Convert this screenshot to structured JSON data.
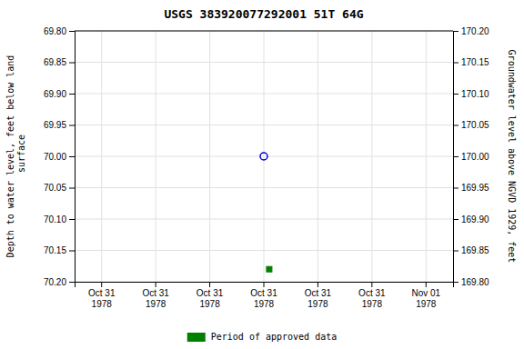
{
  "chart_data": {
    "type": "scatter",
    "title": "USGS 383920077292001 51T 64G",
    "ylabel": "Depth to water level, feet below land\n surface",
    "y2label": "Groundwater level above NGVD 1929, feet",
    "categories": [
      "Oct 31\n1978",
      "Oct 31\n1978",
      "Oct 31\n1978",
      "Oct 31\n1978",
      "Oct 31\n1978",
      "Oct 31\n1978",
      "Nov 01\n1978"
    ],
    "series": [
      {
        "color": "#0000cc",
        "marker": "circle",
        "values": [
          null,
          null,
          null,
          70.0,
          null,
          null,
          null
        ]
      },
      {
        "name": "Period of approved data",
        "color": "#008000",
        "marker": "square",
        "values": [
          null,
          null,
          null,
          70.18,
          null,
          null,
          null
        ]
      }
    ],
    "ylim": [
      70.2,
      69.8
    ],
    "yticks": [
      {
        "value": 69.8,
        "label": "69.80"
      },
      {
        "value": 69.85,
        "label": "69.85"
      },
      {
        "value": 69.9,
        "label": "69.90"
      },
      {
        "value": 69.95,
        "label": "69.95"
      },
      {
        "value": 70.0,
        "label": "70.00"
      },
      {
        "value": 70.05,
        "label": "70.05"
      },
      {
        "value": 70.1,
        "label": "70.10"
      },
      {
        "value": 70.15,
        "label": "70.15"
      },
      {
        "value": 70.2,
        "label": "70.20"
      }
    ],
    "y2lim": [
      169.8,
      170.2
    ],
    "y2ticks": [
      {
        "value": 170.2,
        "label": "170.20"
      },
      {
        "value": 170.15,
        "label": "170.15"
      },
      {
        "value": 170.1,
        "label": "170.10"
      },
      {
        "value": 170.05,
        "label": "170.05"
      },
      {
        "value": 170.0,
        "label": "170.00"
      },
      {
        "value": 169.95,
        "label": "169.95"
      },
      {
        "value": 169.9,
        "label": "169.90"
      },
      {
        "value": 169.85,
        "label": "169.85"
      },
      {
        "value": 169.8,
        "label": "169.80"
      }
    ],
    "grid": true,
    "legend": "bottom"
  }
}
